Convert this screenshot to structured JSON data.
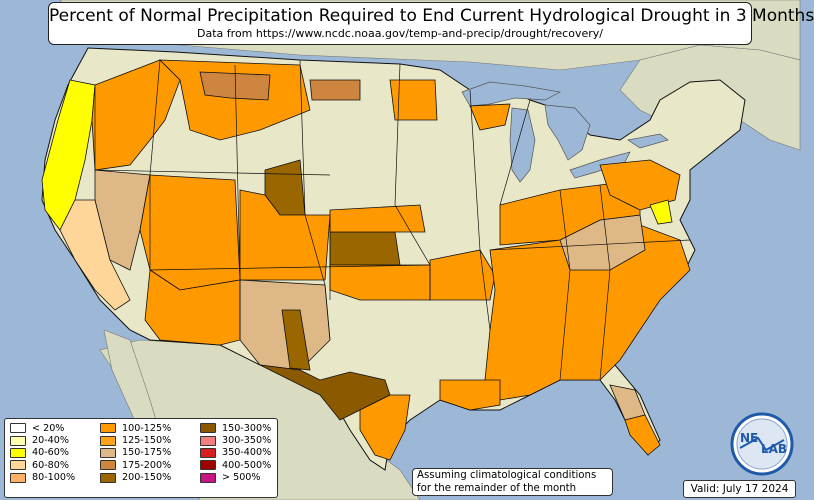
{
  "header": {
    "title": "Percent of Normal Precipitation Required to End Current Hydrological Drought in 3 Months",
    "subtitle": "Data from https://www.ncdc.noaa.gov/temp-and-precip/drought/recovery/"
  },
  "legend": {
    "items": [
      {
        "label": "< 20%",
        "color": "#ffffff"
      },
      {
        "label": "20-40%",
        "color": "#ffffb0"
      },
      {
        "label": "40-60%",
        "color": "#ffff00"
      },
      {
        "label": "60-80%",
        "color": "#ffd699"
      },
      {
        "label": "80-100%",
        "color": "#ffb266"
      },
      {
        "label": "100-125%",
        "color": "#ff9900"
      },
      {
        "label": "125-150%",
        "color": "#ffa31a"
      },
      {
        "label": "150-175%",
        "color": "#deb887"
      },
      {
        "label": "175-200%",
        "color": "#cd853f"
      },
      {
        "label": "200-150%",
        "color": "#996600"
      },
      {
        "label": "150-300%",
        "color": "#8b5a00"
      },
      {
        "label": "300-350%",
        "color": "#f08080"
      },
      {
        "label": "350-400%",
        "color": "#d62020"
      },
      {
        "label": "400-500%",
        "color": "#a00000"
      },
      {
        "label": "> 500%",
        "color": "#c71585"
      }
    ]
  },
  "note": {
    "line1": "Assuming climatological conditions",
    "line2": "for the remainder of the month"
  },
  "valid_label": "Valid: July 17 2024",
  "logo": {
    "text_left": "NE",
    "text_right": "LAB"
  },
  "map": {
    "ocean_color": "#9db8d6",
    "land_color": "#e8e7c8",
    "neighbor_land_color": "#d9dcc0",
    "lake_color": "#9db8d6",
    "border_color": "#111111"
  }
}
